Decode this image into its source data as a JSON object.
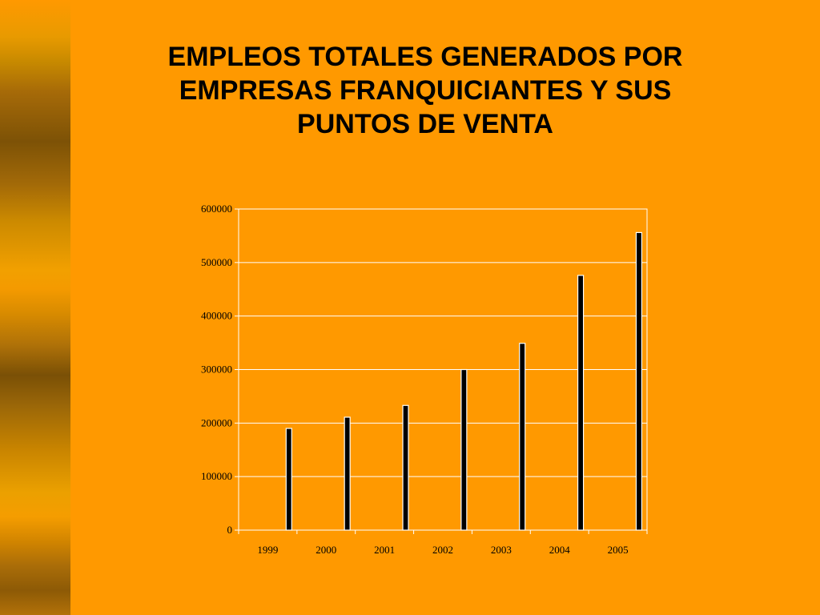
{
  "slide": {
    "title": "EMPLEOS TOTALES GENERADOS POR\nEMPRESAS FRANQUICIANTES Y SUS\nPUNTOS DE VENTA",
    "colors": {
      "background": "#ff9900",
      "bars": "#000000",
      "gridlines": "#ffffff"
    }
  },
  "chart_data": {
    "type": "bar",
    "categories": [
      "1999",
      "2000",
      "2001",
      "2002",
      "2003",
      "2004",
      "2005"
    ],
    "values": [
      190000,
      211000,
      233000,
      300000,
      349000,
      476000,
      556000
    ],
    "ylim": [
      0,
      600000
    ],
    "yticks": [
      "0",
      "100000",
      "200000",
      "300000",
      "400000",
      "500000",
      "600000"
    ],
    "xlabel": "",
    "ylabel": "",
    "grid": true,
    "legend": false
  }
}
